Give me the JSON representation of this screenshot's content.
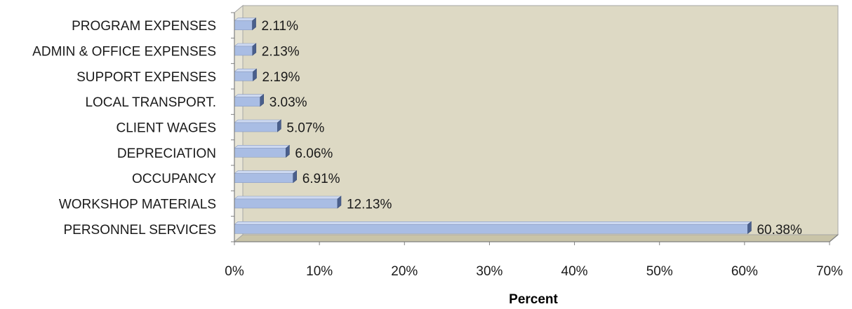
{
  "chart_data": {
    "type": "bar",
    "orientation": "horizontal",
    "categories": [
      "PROGRAM EXPENSES",
      "ADMIN & OFFICE EXPENSES",
      "SUPPORT EXPENSES",
      "LOCAL TRANSPORT.",
      "CLIENT WAGES",
      "DEPRECIATION",
      "OCCUPANCY",
      "WORKSHOP MATERIALS",
      "PERSONNEL SERVICES"
    ],
    "values": [
      2.11,
      2.13,
      2.19,
      3.03,
      5.07,
      6.06,
      6.91,
      12.13,
      60.38
    ],
    "data_labels": [
      "2.11%",
      "2.13%",
      "2.19%",
      "3.03%",
      "5.07%",
      "6.06%",
      "6.91%",
      "12.13%",
      "60.38%"
    ],
    "xlabel": "Percent",
    "ylabel": "",
    "xlim": [
      0,
      70
    ],
    "x_ticks": [
      0,
      10,
      20,
      30,
      40,
      50,
      60,
      70
    ],
    "x_tick_labels": [
      "0%",
      "10%",
      "20%",
      "30%",
      "40%",
      "50%",
      "60%",
      "70%"
    ],
    "grid": false,
    "legend": "none",
    "colors": {
      "bar_face": "#a9bde4",
      "bar_top": "#cdd9f1",
      "bar_end": "#4a5f8c",
      "plot_back": "#ddd9c4",
      "plot_floor": "#c9c4a8",
      "plot_side": "#e8e5d6"
    }
  }
}
